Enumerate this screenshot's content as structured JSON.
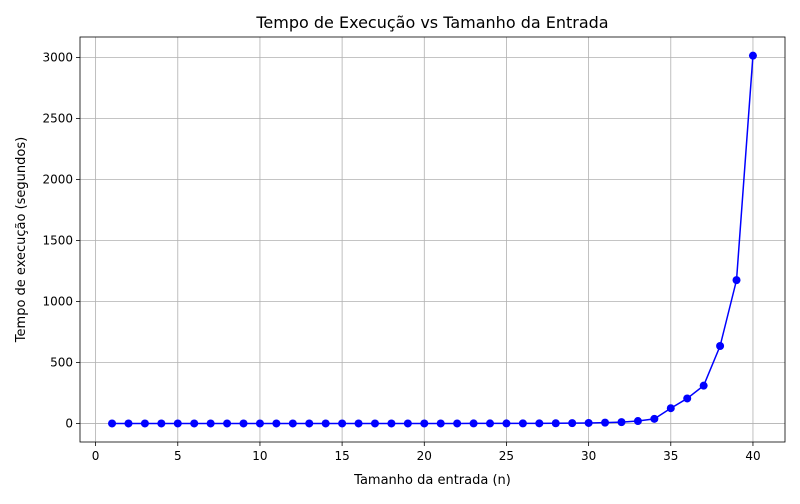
{
  "chart_data": {
    "type": "line",
    "title": "Tempo de Execução vs Tamanho da Entrada",
    "xlabel": "Tamanho da entrada (n)",
    "ylabel": "Tempo de execução (segundos)",
    "xlim": [
      -0.95,
      41.95
    ],
    "ylim": [
      -152,
      3168
    ],
    "xticks": [
      0,
      5,
      10,
      15,
      20,
      25,
      30,
      35,
      40
    ],
    "yticks": [
      0,
      500,
      1000,
      1500,
      2000,
      2500,
      3000
    ],
    "grid": true,
    "series": [
      {
        "color": "#0000ff",
        "marker": "circle",
        "x": [
          1,
          2,
          3,
          4,
          5,
          6,
          7,
          8,
          9,
          10,
          11,
          12,
          13,
          14,
          15,
          16,
          17,
          18,
          19,
          20,
          21,
          22,
          23,
          24,
          25,
          26,
          27,
          28,
          29,
          30,
          31,
          32,
          33,
          34,
          35,
          36,
          37,
          38,
          39,
          40
        ],
        "y": [
          0,
          0,
          0,
          0,
          0,
          0,
          0,
          0,
          0,
          0,
          0,
          0,
          0,
          0,
          0,
          0,
          0,
          0,
          0,
          0,
          0.1,
          0.1,
          0.2,
          0.3,
          0.4,
          0.6,
          1,
          1.6,
          2.6,
          4.2,
          6.8,
          11,
          20,
          38,
          125,
          205,
          310,
          635,
          1175,
          3015
        ]
      }
    ]
  }
}
